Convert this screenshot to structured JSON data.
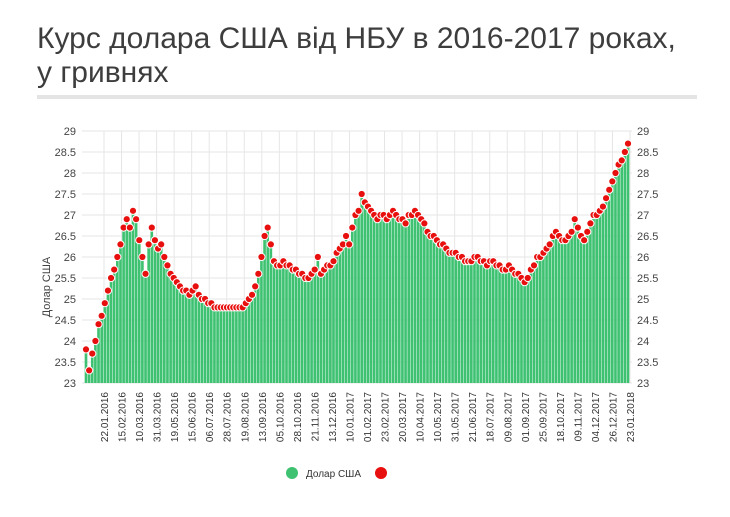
{
  "title": "Курс долара США від НБУ в 2016-2017 роках, у гривнях",
  "colors": {
    "bars": "#3ec272",
    "points": "#e8100f",
    "grid": "#e6e6e6"
  },
  "chart_data": {
    "type": "bar",
    "title": "Курс долара США від НБУ в 2016-2017 роках, у гривнях",
    "ylabel": "Долар США",
    "xlabel": "",
    "ylim": [
      23,
      29
    ],
    "y_ticks": [
      "23",
      "23.5",
      "24",
      "24.5",
      "25",
      "25.5",
      "26",
      "26.5",
      "27",
      "27.5",
      "28",
      "28.5",
      "29"
    ],
    "x_tick_labels": [
      "22.01.2016",
      "15.02.2016",
      "10.03.2016",
      "31.03.2016",
      "19.05.2016",
      "15.06.2016",
      "06.07.2016",
      "28.07.2016",
      "19.08.2016",
      "13.09.2016",
      "05.10.2016",
      "28.10.2016",
      "21.11.2016",
      "13.12.2016",
      "10.01.2017",
      "01.02.2017",
      "23.02.2017",
      "20.03.2017",
      "10.04.2017",
      "10.05.2017",
      "31.05.2017",
      "21.06.2017",
      "18.07.2017",
      "09.08.2017",
      "01.09.2017",
      "25.09.2017",
      "18.10.2017",
      "09.11.2017",
      "04.12.2017",
      "26.12.2017",
      "23.01.2018"
    ],
    "grid": true,
    "legend": {
      "position": "bottom",
      "entries": [
        "Долар США"
      ]
    },
    "series": [
      {
        "name": "Долар США",
        "values": [
          23.8,
          23.3,
          23.7,
          24.0,
          24.4,
          24.6,
          24.9,
          25.2,
          25.5,
          25.7,
          26.0,
          26.3,
          26.7,
          26.9,
          26.7,
          27.1,
          26.9,
          26.4,
          26.0,
          25.6,
          26.3,
          26.7,
          26.4,
          26.2,
          26.3,
          26.0,
          25.8,
          25.6,
          25.5,
          25.4,
          25.3,
          25.2,
          25.2,
          25.1,
          25.2,
          25.3,
          25.1,
          25.0,
          25.0,
          24.9,
          24.9,
          24.8,
          24.8,
          24.8,
          24.8,
          24.8,
          24.8,
          24.8,
          24.8,
          24.8,
          24.8,
          24.9,
          25.0,
          25.1,
          25.3,
          25.6,
          26.0,
          26.5,
          26.7,
          26.3,
          25.9,
          25.8,
          25.8,
          25.9,
          25.8,
          25.8,
          25.7,
          25.7,
          25.6,
          25.6,
          25.5,
          25.5,
          25.6,
          25.7,
          26.0,
          25.6,
          25.7,
          25.8,
          25.8,
          25.9,
          26.1,
          26.2,
          26.3,
          26.5,
          26.3,
          26.7,
          27.0,
          27.1,
          27.5,
          27.3,
          27.2,
          27.1,
          27.0,
          26.9,
          27.0,
          27.0,
          26.9,
          27.0,
          27.1,
          27.0,
          26.9,
          26.9,
          26.8,
          27.0,
          27.0,
          27.1,
          27.0,
          26.9,
          26.8,
          26.6,
          26.5,
          26.5,
          26.4,
          26.3,
          26.3,
          26.2,
          26.1,
          26.1,
          26.1,
          26.0,
          26.0,
          25.9,
          25.9,
          25.9,
          26.0,
          26.0,
          25.9,
          25.9,
          25.8,
          25.9,
          25.9,
          25.8,
          25.8,
          25.7,
          25.7,
          25.8,
          25.7,
          25.6,
          25.6,
          25.5,
          25.4,
          25.5,
          25.7,
          25.8,
          26.0,
          26.0,
          26.1,
          26.2,
          26.3,
          26.5,
          26.6,
          26.5,
          26.4,
          26.4,
          26.5,
          26.6,
          26.9,
          26.7,
          26.5,
          26.4,
          26.6,
          26.8,
          27.0,
          27.0,
          27.1,
          27.2,
          27.4,
          27.6,
          27.8,
          28.0,
          28.2,
          28.3,
          28.5,
          28.7
        ]
      }
    ]
  }
}
